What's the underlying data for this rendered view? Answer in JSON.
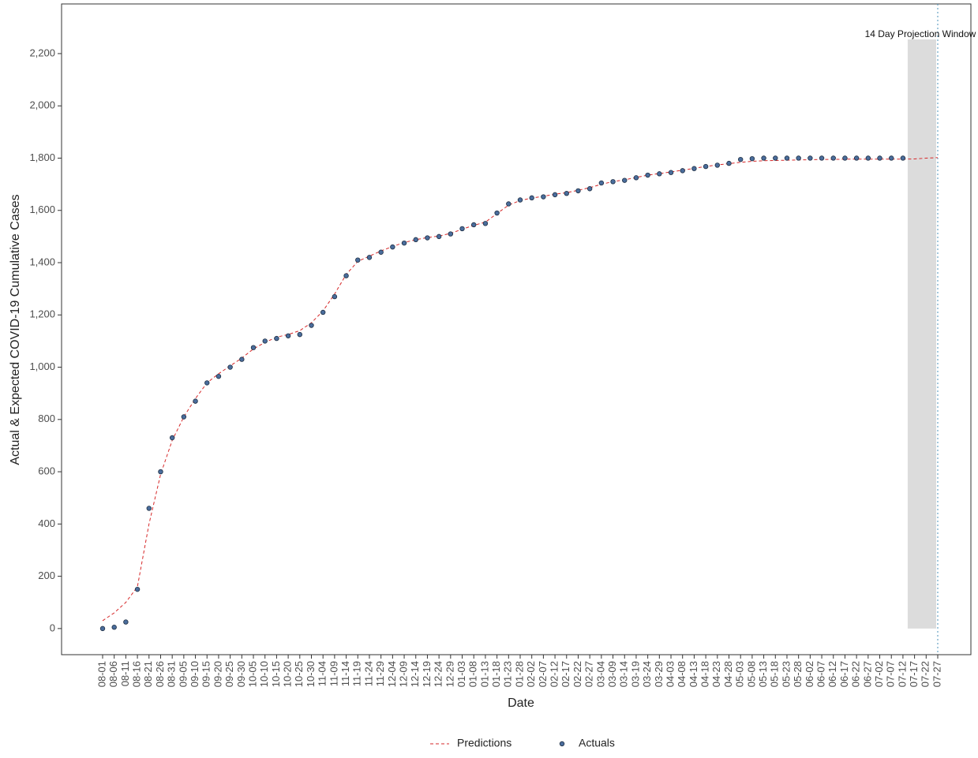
{
  "chart_data": {
    "type": "line",
    "x_label": "Date",
    "y_label": "Actual & Expected COVID-19 Cumulative Cases",
    "annotation": "14 Day Projection Window",
    "categories": [
      "08-01",
      "08-06",
      "08-11",
      "08-16",
      "08-21",
      "08-26",
      "08-31",
      "09-05",
      "09-10",
      "09-15",
      "09-20",
      "09-25",
      "09-30",
      "10-05",
      "10-10",
      "10-15",
      "10-20",
      "10-25",
      "10-30",
      "11-04",
      "11-09",
      "11-14",
      "11-19",
      "11-24",
      "11-29",
      "12-04",
      "12-09",
      "12-14",
      "12-19",
      "12-24",
      "12-29",
      "01-03",
      "01-08",
      "01-13",
      "01-18",
      "01-23",
      "01-28",
      "02-02",
      "02-07",
      "02-12",
      "02-17",
      "02-22",
      "02-27",
      "03-04",
      "03-09",
      "03-14",
      "03-19",
      "03-24",
      "03-29",
      "04-03",
      "04-08",
      "04-13",
      "04-18",
      "04-23",
      "04-28",
      "05-03",
      "05-08",
      "05-13",
      "05-18",
      "05-23",
      "05-28",
      "06-02",
      "06-07",
      "06-12",
      "06-17",
      "06-22",
      "06-27",
      "07-02",
      "07-07",
      "07-12",
      "07-17",
      "07-22",
      "07-27"
    ],
    "series": [
      {
        "name": "Predictions",
        "color": "#d62728",
        "style": "dashed",
        "values": [
          30,
          60,
          100,
          160,
          400,
          590,
          720,
          810,
          880,
          940,
          975,
          1005,
          1035,
          1070,
          1095,
          1115,
          1125,
          1140,
          1170,
          1215,
          1280,
          1355,
          1405,
          1425,
          1445,
          1462,
          1477,
          1488,
          1496,
          1502,
          1512,
          1528,
          1543,
          1555,
          1588,
          1620,
          1638,
          1647,
          1654,
          1662,
          1668,
          1677,
          1687,
          1700,
          1710,
          1717,
          1726,
          1735,
          1741,
          1747,
          1754,
          1761,
          1768,
          1774,
          1779,
          1784,
          1788,
          1790,
          1791,
          1792,
          1793,
          1794,
          1795,
          1795,
          1796,
          1796,
          1796,
          1796,
          1796,
          1796,
          1797,
          1800,
          1802
        ]
      },
      {
        "name": "Actuals",
        "color": "#4a6d9c",
        "style": "points",
        "values": [
          0,
          5,
          25,
          150,
          460,
          600,
          730,
          810,
          870,
          940,
          965,
          1000,
          1030,
          1075,
          1100,
          1110,
          1120,
          1125,
          1160,
          1210,
          1270,
          1350,
          1410,
          1420,
          1440,
          1460,
          1475,
          1488,
          1495,
          1500,
          1510,
          1530,
          1545,
          1550,
          1590,
          1625,
          1640,
          1648,
          1652,
          1660,
          1665,
          1675,
          1683,
          1705,
          1710,
          1715,
          1725,
          1735,
          1740,
          1745,
          1752,
          1760,
          1768,
          1773,
          1780,
          1795,
          1798,
          1800,
          1800,
          1800,
          1800,
          1800,
          1800,
          1800,
          1800,
          1800,
          1800,
          1800,
          1800,
          1800,
          null,
          null,
          null
        ]
      }
    ],
    "ylim": [
      -100,
      2390
    ],
    "yticks": [
      0,
      200,
      400,
      600,
      800,
      {
        "value": 1000,
        "label": "1,000"
      },
      {
        "value": 1200,
        "label": "1,200"
      },
      {
        "value": 1400,
        "label": "1,400"
      },
      {
        "value": 1600,
        "label": "1,600"
      },
      {
        "value": 1800,
        "label": "1,800"
      },
      {
        "value": 2000,
        "label": "2,000"
      },
      {
        "value": 2200,
        "label": "2,200"
      }
    ],
    "grid": false,
    "legend": "bottom"
  }
}
